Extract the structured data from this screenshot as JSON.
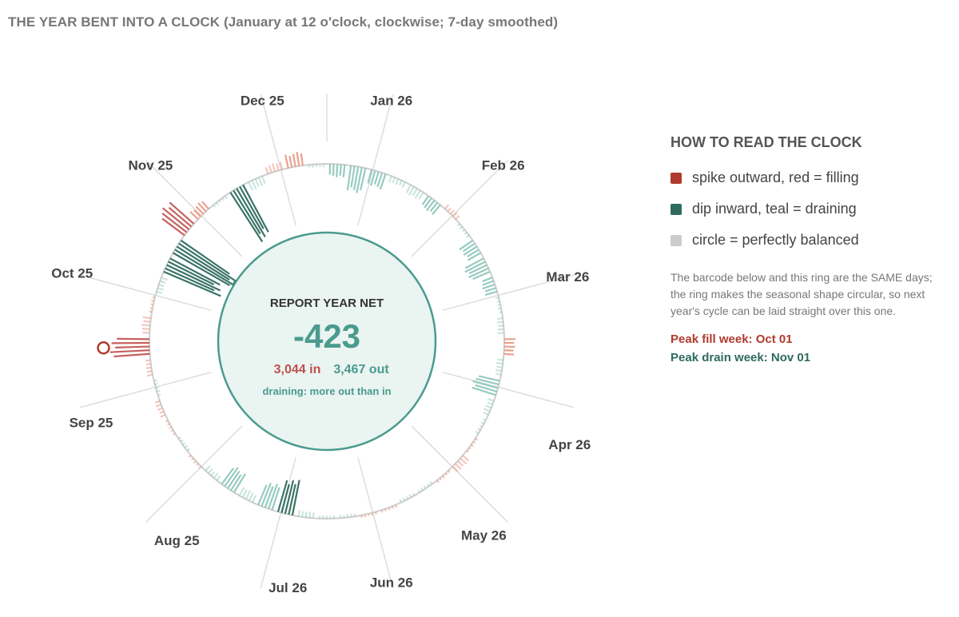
{
  "title": "THE YEAR BENT INTO A CLOCK (January at 12 o'clock, clockwise; 7-day smoothed)",
  "center": {
    "caption": "REPORT YEAR NET",
    "net": "-423",
    "in_label": "3,044 in",
    "out_label": "3,467 out",
    "status": "draining: more out than in"
  },
  "legend": {
    "title": "HOW TO READ THE CLOCK",
    "items": [
      {
        "label": "spike outward, red = filling",
        "color": "#b03a2e"
      },
      {
        "label": "dip inward, teal = draining",
        "color": "#2f6b5e"
      },
      {
        "label": "circle = perfectly balanced",
        "color": "#cccccc"
      }
    ],
    "note": "The barcode below and this ring are the SAME days; the ring makes the seasonal shape circular, so next year's cycle can be laid straight over this one.",
    "peak_fill": "Peak fill week: Oct 01",
    "peak_drain": "Peak drain week: Nov 01"
  },
  "chart_data": {
    "type": "radial-bar",
    "orientation": "January at 12 o'clock, clockwise",
    "smoothing": "7-day",
    "months": [
      "Jan 26",
      "Feb 26",
      "Mar 26",
      "Apr 26",
      "May 26",
      "Jun 26",
      "Jul 26",
      "Aug 25",
      "Sep 25",
      "Oct 25",
      "Nov 25",
      "Dec 25"
    ],
    "totals": {
      "in": 3044,
      "out": 3467,
      "net": -423
    },
    "peak_fill_week": "Oct 01",
    "peak_drain_week": "Nov 01",
    "colors": {
      "fill": "#c0504d",
      "fill_light": "#e8917a",
      "drain": "#2f6b5e",
      "drain_light": "#8cc5b8",
      "balance": "#cccccc"
    },
    "weekly_net": [
      {
        "week": "Jan 01",
        "net": -4
      },
      {
        "week": "Jan 08",
        "net": -8
      },
      {
        "week": "Jan 15",
        "net": -5
      },
      {
        "week": "Jan 22",
        "net": -2
      },
      {
        "week": "Jan 29",
        "net": -3
      },
      {
        "week": "Feb 05",
        "net": -4
      },
      {
        "week": "Feb 12",
        "net": 2
      },
      {
        "week": "Feb 19",
        "net": -1
      },
      {
        "week": "Feb 26",
        "net": -5
      },
      {
        "week": "Mar 05",
        "net": -7
      },
      {
        "week": "Mar 12",
        "net": -4
      },
      {
        "week": "Mar 19",
        "net": -1
      },
      {
        "week": "Mar 26",
        "net": -2
      },
      {
        "week": "Apr 02",
        "net": 4
      },
      {
        "week": "Apr 09",
        "net": -2
      },
      {
        "week": "Apr 16",
        "net": -8
      },
      {
        "week": "Apr 23",
        "net": -2
      },
      {
        "week": "Apr 30",
        "net": -1
      },
      {
        "week": "May 07",
        "net": 1
      },
      {
        "week": "May 14",
        "net": 3
      },
      {
        "week": "May 21",
        "net": 1
      },
      {
        "week": "May 28",
        "net": -1
      },
      {
        "week": "Jun 04",
        "net": -1
      },
      {
        "week": "Jun 11",
        "net": 1
      },
      {
        "week": "Jun 18",
        "net": 1
      },
      {
        "week": "Jun 25",
        "net": -1
      },
      {
        "week": "Jul 02",
        "net": -1
      },
      {
        "week": "Jul 09",
        "net": -2
      },
      {
        "week": "Jul 16",
        "net": -11
      },
      {
        "week": "Jul 23",
        "net": -8
      },
      {
        "week": "Jul 30",
        "net": -3
      },
      {
        "week": "Aug 06",
        "net": -7
      },
      {
        "week": "Aug 13",
        "net": -2
      },
      {
        "week": "Aug 20",
        "net": 1
      },
      {
        "week": "Aug 27",
        "net": -1
      },
      {
        "week": "Sep 03",
        "net": 1
      },
      {
        "week": "Sep 10",
        "net": 2
      },
      {
        "week": "Sep 17",
        "net": -1
      },
      {
        "week": "Sep 24",
        "net": 2
      },
      {
        "week": "Oct 01",
        "net": 14
      },
      {
        "week": "Oct 08",
        "net": 3
      },
      {
        "week": "Oct 15",
        "net": 1
      },
      {
        "week": "Oct 22",
        "net": -2
      },
      {
        "week": "Oct 29",
        "net": -19
      },
      {
        "week": "Nov 01",
        "net": -22
      },
      {
        "week": "Nov 08",
        "net": 12
      },
      {
        "week": "Nov 15",
        "net": 4
      },
      {
        "week": "Nov 22",
        "net": -1
      },
      {
        "week": "Dec 01",
        "net": -18
      },
      {
        "week": "Dec 08",
        "net": -3
      },
      {
        "week": "Dec 15",
        "net": 3
      },
      {
        "week": "Dec 22",
        "net": 5
      },
      {
        "week": "Dec 29",
        "net": -1
      }
    ]
  }
}
